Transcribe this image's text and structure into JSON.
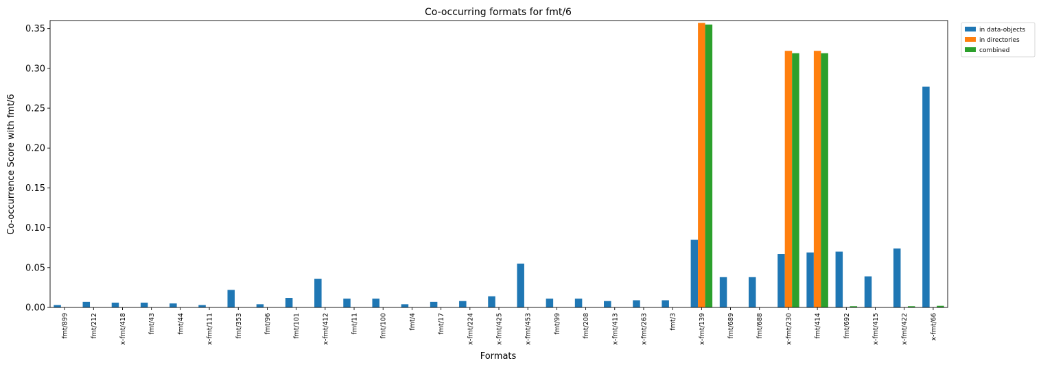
{
  "chart_data": {
    "type": "bar",
    "title": "Co-occurring formats for fmt/6",
    "xlabel": "Formats",
    "ylabel": "Co-occurrence Score with fmt/6",
    "ylim": [
      0,
      0.36
    ],
    "yticks": [
      0.0,
      0.05,
      0.1,
      0.15,
      0.2,
      0.25,
      0.3,
      0.35
    ],
    "ytick_labels": [
      "0.00",
      "0.05",
      "0.10",
      "0.15",
      "0.20",
      "0.25",
      "0.30",
      "0.35"
    ],
    "grid": false,
    "legend_position": "outside-top-right",
    "categories": [
      "fmt/899",
      "fmt/212",
      "x-fmt/418",
      "fmt/43",
      "fmt/44",
      "x-fmt/111",
      "fmt/353",
      "fmt/96",
      "fmt/101",
      "x-fmt/412",
      "fmt/11",
      "fmt/100",
      "fmt/4",
      "fmt/17",
      "x-fmt/224",
      "x-fmt/425",
      "x-fmt/453",
      "fmt/99",
      "fmt/208",
      "x-fmt/413",
      "x-fmt/263",
      "fmt/3",
      "x-fmt/139",
      "fmt/689",
      "fmt/688",
      "x-fmt/230",
      "fmt/414",
      "fmt/692",
      "x-fmt/415",
      "x-fmt/422",
      "x-fmt/66"
    ],
    "series": [
      {
        "name": "in data-objects",
        "color": "#1f77b4",
        "values": [
          0.003,
          0.007,
          0.006,
          0.006,
          0.005,
          0.003,
          0.022,
          0.004,
          0.012,
          0.036,
          0.011,
          0.011,
          0.004,
          0.007,
          0.008,
          0.014,
          0.055,
          0.011,
          0.011,
          0.008,
          0.009,
          0.009,
          0.085,
          0.038,
          0.038,
          0.067,
          0.069,
          0.07,
          0.039,
          0.074,
          0.277
        ]
      },
      {
        "name": "in directories",
        "color": "#ff7f0e",
        "values": [
          0,
          0,
          0,
          0,
          0,
          0,
          0,
          0,
          0,
          0,
          0,
          0,
          0,
          0,
          0,
          0,
          0,
          0,
          0,
          0,
          0,
          0,
          0.357,
          0,
          0,
          0.322,
          0.322,
          0,
          0,
          0,
          0
        ]
      },
      {
        "name": "combined",
        "color": "#2ca02c",
        "values": [
          0,
          0,
          0,
          0,
          0,
          0,
          0,
          0,
          0,
          0,
          0,
          0,
          0,
          0,
          0,
          0,
          0,
          0,
          0,
          0,
          0,
          0,
          0.355,
          0,
          0,
          0.319,
          0.319,
          0.0015,
          0,
          0.0015,
          0.002
        ]
      }
    ]
  }
}
